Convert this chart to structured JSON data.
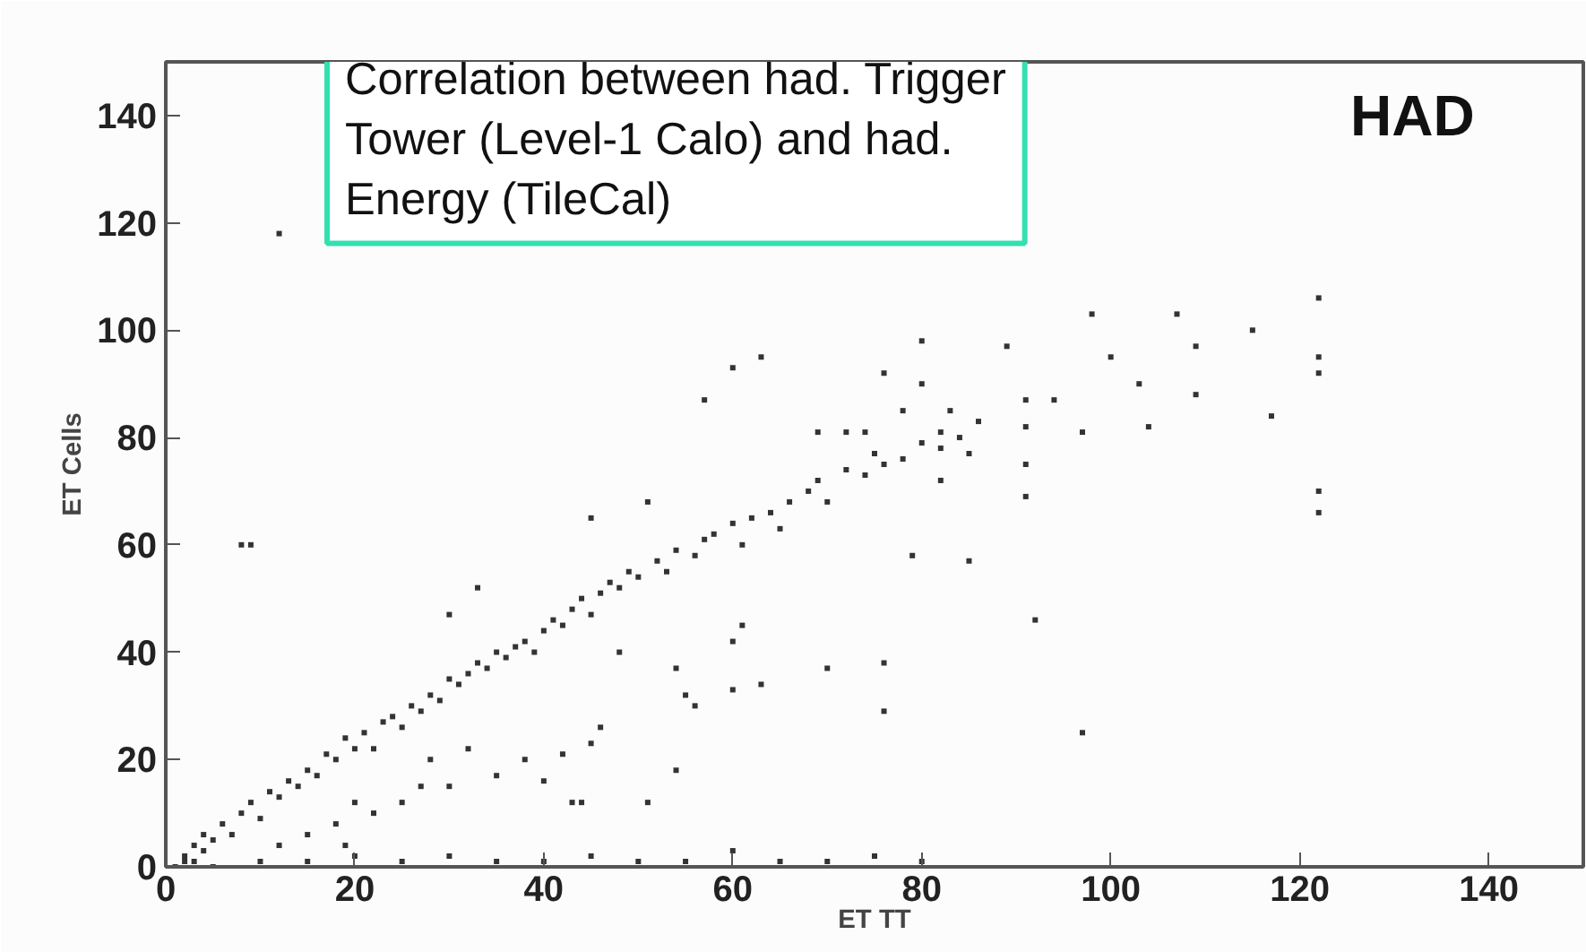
{
  "chart_data": {
    "type": "scatter",
    "xlabel": "ET TT",
    "ylabel": "ET Cells",
    "annotations": [
      "Correlation between had. Trigger\nTower (Level-1 Calo) and had.\nEnergy (TileCal)",
      "HAD"
    ],
    "xlim": [
      0,
      150
    ],
    "ylim": [
      0,
      150
    ],
    "xticks": [
      0,
      20,
      40,
      60,
      80,
      100,
      120,
      140
    ],
    "yticks": [
      0,
      20,
      40,
      60,
      80,
      100,
      120,
      140
    ],
    "grid": false,
    "marker": "square",
    "series": [
      {
        "color": "#333333",
        "x": [
          1,
          2,
          3,
          2,
          3,
          4,
          4,
          5,
          6,
          7,
          8,
          9,
          10,
          11,
          12,
          13,
          14,
          15,
          16,
          17,
          18,
          19,
          20,
          21,
          22,
          23,
          24,
          25,
          26,
          27,
          28,
          29,
          30,
          31,
          32,
          33,
          34,
          35,
          36,
          37,
          38,
          39,
          40,
          41,
          42,
          43,
          44,
          45,
          46,
          47,
          48,
          49,
          50,
          52,
          53,
          54,
          56,
          57,
          58,
          60,
          61,
          62,
          64,
          65,
          66,
          68,
          69,
          70,
          72,
          74,
          75,
          76,
          78,
          80,
          82,
          84,
          86,
          5,
          10,
          15,
          20,
          25,
          30,
          35,
          40,
          45,
          50,
          55,
          60,
          65,
          70,
          75,
          80,
          12,
          15,
          18,
          20,
          19,
          22,
          25,
          27,
          30,
          35,
          40,
          32,
          38,
          42,
          28,
          51,
          45,
          57,
          60,
          63,
          33,
          30,
          12,
          8,
          9,
          63,
          60,
          51,
          43,
          44,
          54,
          45,
          46,
          55,
          56,
          54,
          48,
          60,
          61,
          122,
          122,
          122,
          122,
          122,
          92,
          97,
          76,
          76,
          70,
          117,
          104,
          109,
          103,
          100,
          98,
          107,
          115,
          109,
          80,
          89,
          76,
          91,
          94,
          91,
          97,
          85,
          79,
          82,
          91,
          91,
          85,
          80,
          78,
          74,
          72,
          69,
          82,
          83
        ],
        "values": [
          0,
          1,
          1,
          2,
          4,
          3,
          6,
          5,
          8,
          6,
          10,
          12,
          9,
          14,
          13,
          16,
          15,
          18,
          17,
          21,
          20,
          24,
          22,
          25,
          22,
          27,
          28,
          26,
          30,
          29,
          32,
          31,
          35,
          34,
          36,
          38,
          37,
          40,
          39,
          41,
          42,
          40,
          44,
          46,
          45,
          48,
          50,
          47,
          51,
          53,
          52,
          55,
          54,
          57,
          55,
          59,
          58,
          61,
          62,
          64,
          60,
          65,
          66,
          63,
          68,
          70,
          72,
          68,
          74,
          73,
          77,
          75,
          76,
          79,
          78,
          80,
          83,
          0,
          1,
          1,
          2,
          1,
          2,
          1,
          1,
          2,
          1,
          1,
          3,
          1,
          1,
          2,
          1,
          4,
          6,
          8,
          12,
          4,
          10,
          12,
          15,
          15,
          17,
          16,
          22,
          20,
          21,
          20,
          68,
          65,
          87,
          93,
          95,
          52,
          47,
          118,
          60,
          60,
          34,
          33,
          12,
          12,
          12,
          18,
          23,
          26,
          32,
          30,
          37,
          40,
          42,
          45,
          106,
          95,
          92,
          70,
          66,
          46,
          25,
          29,
          38,
          37,
          84,
          82,
          88,
          90,
          95,
          103,
          103,
          100,
          97,
          98,
          97,
          92,
          87,
          87,
          82,
          81,
          57,
          58,
          72,
          75,
          69,
          77,
          90,
          85,
          81,
          81,
          81,
          81,
          85
        ]
      }
    ]
  }
}
